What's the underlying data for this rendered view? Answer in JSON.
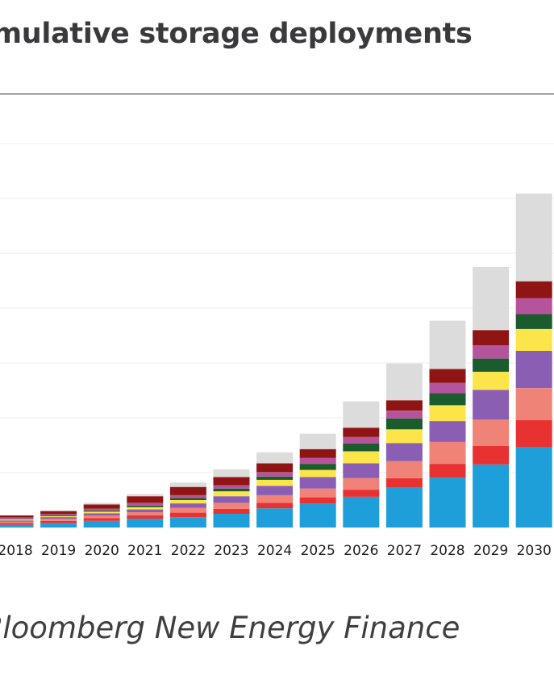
{
  "header": {
    "title": "umulative storage deployments"
  },
  "footer": {
    "source": "Bloomberg New Energy Finance"
  },
  "chart_data": {
    "type": "bar",
    "stacked": true,
    "title": "umulative storage deployments",
    "categories": [
      "2018",
      "2019",
      "2020",
      "2021",
      "2022",
      "2023",
      "2024",
      "2025",
      "2026",
      "2027",
      "2028",
      "2029",
      "2030"
    ],
    "ylim": [
      0,
      7
    ],
    "grid": true,
    "legend": "none",
    "series": [
      {
        "color": "#1f9fd9",
        "values": [
          0.05,
          0.08,
          0.12,
          0.16,
          0.19,
          0.25,
          0.35,
          0.44,
          0.56,
          0.73,
          0.91,
          1.15,
          1.47
        ]
      },
      {
        "color": "#e83232",
        "values": [
          0.03,
          0.04,
          0.05,
          0.06,
          0.08,
          0.09,
          0.1,
          0.11,
          0.13,
          0.17,
          0.25,
          0.34,
          0.49
        ]
      },
      {
        "color": "#f08377",
        "values": [
          0.03,
          0.04,
          0.05,
          0.06,
          0.09,
          0.11,
          0.14,
          0.16,
          0.21,
          0.31,
          0.4,
          0.48,
          0.58
        ]
      },
      {
        "color": "#8a5fb3",
        "values": [
          0.02,
          0.03,
          0.04,
          0.05,
          0.08,
          0.12,
          0.17,
          0.21,
          0.27,
          0.33,
          0.38,
          0.54,
          0.68
        ]
      },
      {
        "color": "#fce54a",
        "values": [
          0.02,
          0.02,
          0.03,
          0.04,
          0.06,
          0.09,
          0.11,
          0.13,
          0.22,
          0.25,
          0.29,
          0.33,
          0.4
        ]
      },
      {
        "color": "#1a5c2d",
        "values": [
          0.01,
          0.02,
          0.02,
          0.03,
          0.04,
          0.05,
          0.06,
          0.11,
          0.14,
          0.2,
          0.22,
          0.24,
          0.27
        ]
      },
      {
        "color": "#b5549c",
        "values": [
          0.02,
          0.02,
          0.03,
          0.05,
          0.05,
          0.06,
          0.08,
          0.11,
          0.12,
          0.14,
          0.19,
          0.24,
          0.29
        ]
      },
      {
        "color": "#8f1515",
        "values": [
          0.04,
          0.05,
          0.08,
          0.12,
          0.15,
          0.15,
          0.16,
          0.16,
          0.17,
          0.19,
          0.25,
          0.28,
          0.31
        ]
      },
      {
        "color": "#dcdcdc",
        "values": [
          0.0,
          0.01,
          0.03,
          0.04,
          0.08,
          0.14,
          0.2,
          0.28,
          0.48,
          0.67,
          0.88,
          1.15,
          1.6
        ]
      }
    ]
  }
}
